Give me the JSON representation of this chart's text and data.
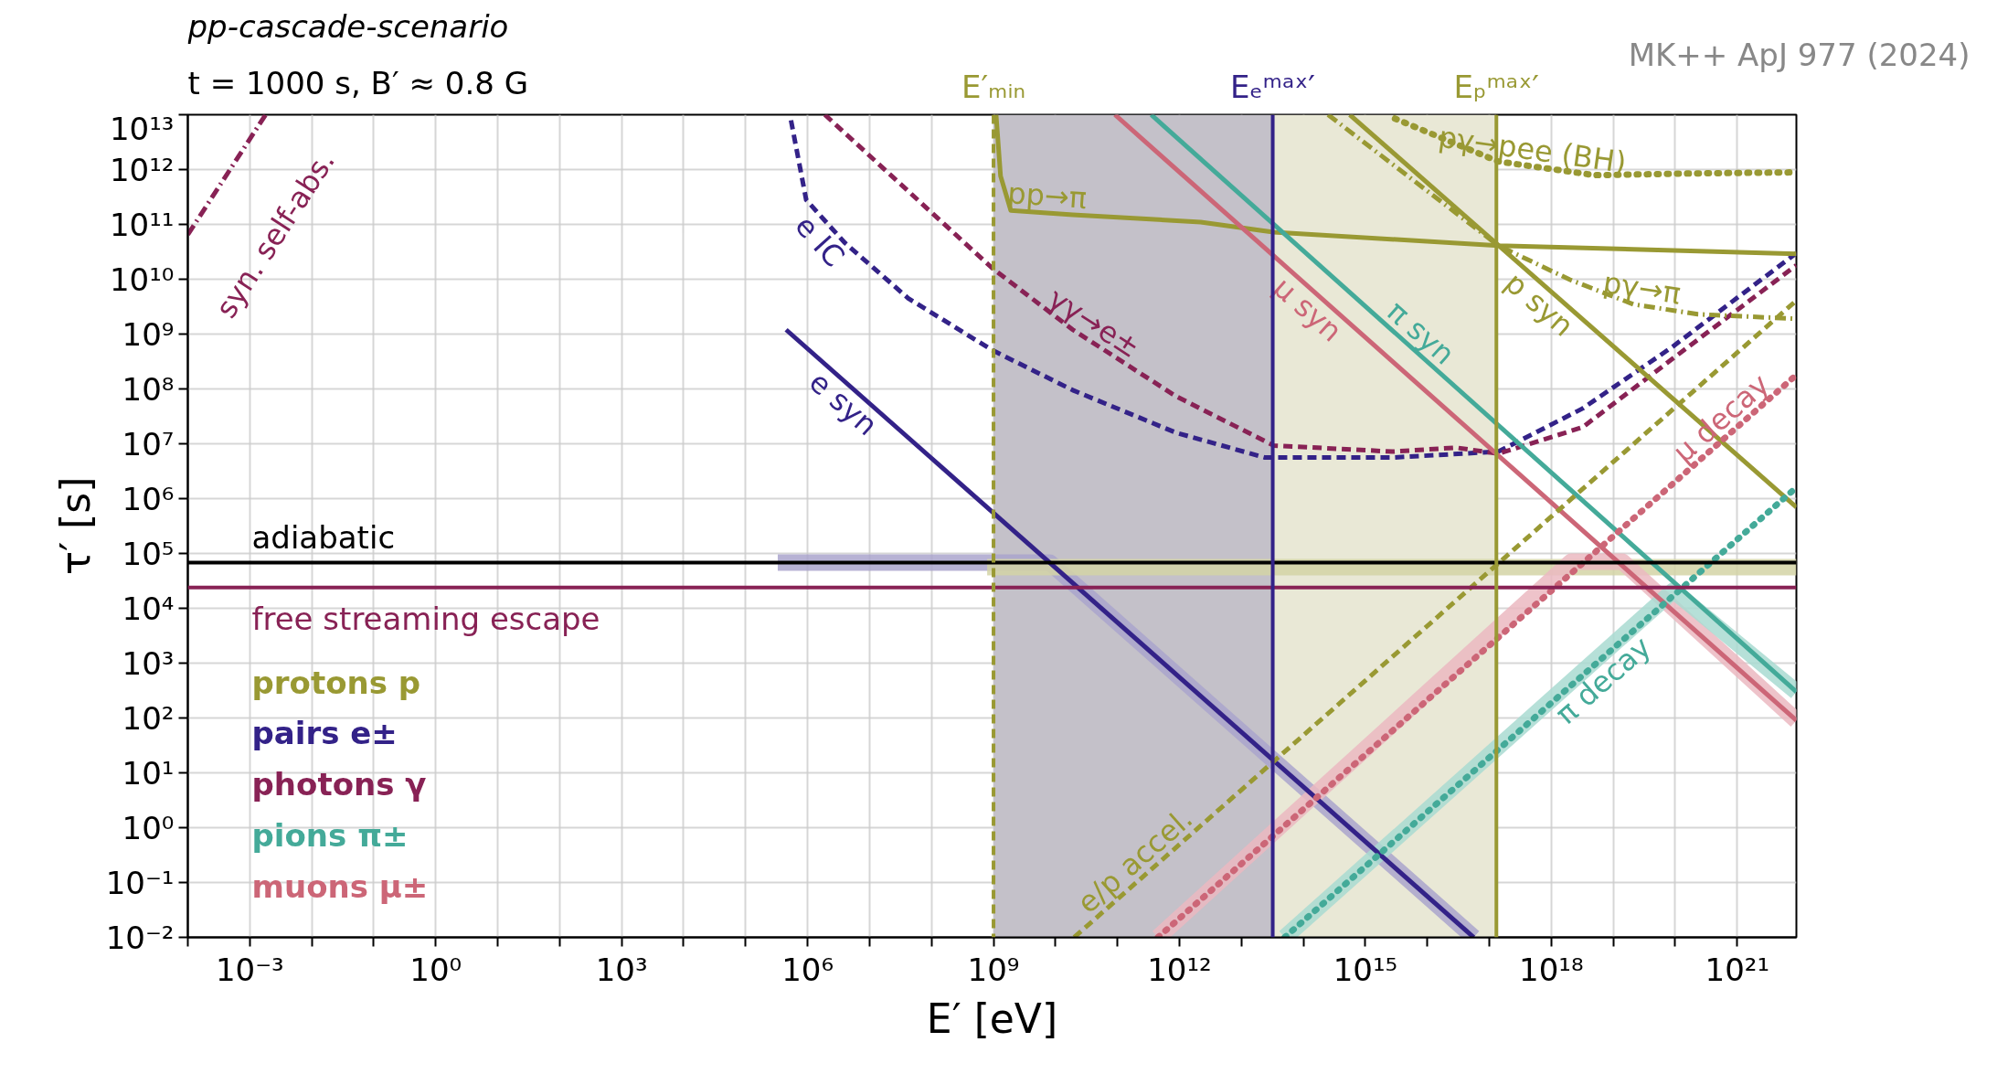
{
  "chart_data": {
    "type": "line",
    "title": "pp-cascade-scenario",
    "subtitle": "t = 1000 s, B′ ≈ 0.8 G",
    "xlabel": "E′ [eV]",
    "ylabel": "τ′ [s]",
    "log": "xy",
    "grid": true,
    "xlim": [
      0.0001,
      9e+21
    ],
    "ylim": [
      0.01,
      10000000000000.0
    ],
    "xticks": [
      {
        "value": 0.0001,
        "label": null
      },
      {
        "value": 0.001,
        "label": "10⁻³"
      },
      {
        "value": 0.01,
        "label": null
      },
      {
        "value": 0.1,
        "label": null
      },
      {
        "value": 1,
        "label": "10⁰"
      },
      {
        "value": 10,
        "label": null
      },
      {
        "value": 100,
        "label": null
      },
      {
        "value": 1000,
        "label": "10³"
      },
      {
        "value": 10000.0,
        "label": null
      },
      {
        "value": 100000.0,
        "label": null
      },
      {
        "value": 1000000.0,
        "label": "10⁶"
      },
      {
        "value": 10000000.0,
        "label": null
      },
      {
        "value": 100000000.0,
        "label": null
      },
      {
        "value": 1000000000.0,
        "label": "10⁹"
      },
      {
        "value": 10000000000.0,
        "label": null
      },
      {
        "value": 100000000000.0,
        "label": null
      },
      {
        "value": 1000000000000.0,
        "label": "10¹²"
      },
      {
        "value": 10000000000000.0,
        "label": null
      },
      {
        "value": 100000000000000.0,
        "label": null
      },
      {
        "value": 1000000000000000.0,
        "label": "10¹⁵"
      },
      {
        "value": 1e+16,
        "label": null
      },
      {
        "value": 1e+17,
        "label": null
      },
      {
        "value": 1e+18,
        "label": "10¹⁸"
      },
      {
        "value": 1e+19,
        "label": null
      },
      {
        "value": 1e+20,
        "label": null
      },
      {
        "value": 1e+21,
        "label": "10²¹"
      }
    ],
    "yticks": [
      {
        "value": 0.01,
        "label": "10⁻²"
      },
      {
        "value": 0.1,
        "label": "10⁻¹"
      },
      {
        "value": 1,
        "label": "10⁰"
      },
      {
        "value": 10,
        "label": "10¹"
      },
      {
        "value": 100,
        "label": "10²"
      },
      {
        "value": 1000,
        "label": "10³"
      },
      {
        "value": 10000.0,
        "label": "10⁴"
      },
      {
        "value": 100000.0,
        "label": "10⁵"
      },
      {
        "value": 1000000.0,
        "label": "10⁶"
      },
      {
        "value": 10000000.0,
        "label": "10⁷"
      },
      {
        "value": 100000000.0,
        "label": "10⁸"
      },
      {
        "value": 1000000000.0,
        "label": "10⁹"
      },
      {
        "value": 10000000000.0,
        "label": "10¹⁰"
      },
      {
        "value": 100000000000.0,
        "label": "10¹¹"
      },
      {
        "value": 1000000000000.0,
        "label": "10¹²"
      },
      {
        "value": 10000000000000.0,
        "label": "10¹³"
      }
    ],
    "bands": [
      {
        "axis": "x",
        "from": 1000000000.0,
        "to": 32000000000000.0,
        "color": "#c4c1c9"
      },
      {
        "axis": "x",
        "from": 32000000000000.0,
        "to": 1.3e+17,
        "color": "#e9e8d6"
      }
    ],
    "ref_lines": [
      {
        "axis": "y",
        "value": 68000.0,
        "label": "adiabatic",
        "color": "#000000",
        "line_style": "solid"
      },
      {
        "axis": "y",
        "value": 24000.0,
        "label": "free streaming escape",
        "color": "#882255",
        "line_style": "solid"
      },
      {
        "axis": "x",
        "value": 1000000000.0,
        "label": "E′ₘᵢₙ",
        "color": "#999933",
        "line_style": "dashed"
      },
      {
        "axis": "x",
        "value": 32000000000000.0,
        "label": "Eₑᵐᵃˣ′",
        "color": "#332288",
        "line_style": "solid"
      },
      {
        "axis": "x",
        "value": 1.3e+17,
        "label": "Eₚᵐᵃˣ′",
        "color": "#999933",
        "line_style": "solid"
      }
    ],
    "series": [
      {
        "color": "#aaa5cc",
        "line_style": "solid",
        "x": [
          330000.0,
          8100000000.0,
          5.6e+16
        ],
        "values": [
          68000.0,
          68000.0,
          0.01
        ]
      },
      {
        "color": "#d4d4a6",
        "line_style": "solid",
        "x": [
          790000000.0,
          9e+21
        ],
        "values": [
          56000.0,
          56000.0
        ]
      },
      {
        "color": "#ebb9c1",
        "line_style": "solid",
        "x": [
          450000000000.0,
          2.1e+18,
          1.4e+19,
          9e+21
        ],
        "values": [
          0.01,
          71000.0,
          71000.0,
          90.0
        ]
      },
      {
        "color": "#a9dbd1",
        "line_style": "solid",
        "x": [
          50000000000000.0,
          9.3e+19,
          9e+21
        ],
        "values": [
          0.01,
          21000.0,
          300.0
        ]
      },
      {
        "name": "e syn",
        "color": "#332288",
        "line_style": "solid",
        "x": [
          450000.0,
          5.6e+16
        ],
        "values": [
          1200000000.0,
          0.01
        ]
      },
      {
        "name": "e IC",
        "color": "#332288",
        "line_style": "dashed",
        "x": [
          540000.0,
          950000.0,
          4000000.0,
          42000000.0,
          950000000.0,
          19000000000.0,
          870000000000.0,
          24000000000000.0,
          2700000000000000.0,
          1.4e+17,
          3.2e+18,
          8.9e+19,
          9e+21
        ],
        "values": [
          7900000000000.0,
          280000000000.0,
          46000000000.0,
          4500000000.0,
          510000000.0,
          95000000.0,
          16000000.0,
          5600000.0,
          5600000.0,
          7200000.0,
          44000000.0,
          580000000.0,
          30000000000.0
        ]
      },
      {
        "name": "γγ→e±",
        "color": "#882255",
        "line_style": "dashed",
        "x": [
          1900000.0,
          950000000.0,
          19000000000.0,
          870000000000.0,
          33000000000000.0,
          2700000000000000.0,
          2.9e+16,
          1.4e+17,
          3.2e+18,
          8.9e+19,
          9e+21
        ],
        "values": [
          10000000000000.0,
          16000000000.0,
          1200000000.0,
          74000000.0,
          9300000.0,
          7200000.0,
          8500000.0,
          6600000.0,
          20000000.0,
          350000000.0,
          18000000000.0
        ]
      },
      {
        "name": "syn. self-abs.",
        "color": "#882255",
        "line_style": "dashdot",
        "x": [
          0.0001,
          0.0018
        ],
        "values": [
          65000000000.0,
          10000000000000.0
        ]
      },
      {
        "name": "pp→π",
        "color": "#999933",
        "line_style": "solid",
        "x": [
          1100000000.0,
          1300000000.0,
          1900000000.0,
          19000000000.0,
          2200000000000.0,
          33000000000000.0,
          1.4e+17,
          9e+21
        ],
        "values": [
          10000000000000.0,
          760000000000.0,
          180000000000.0,
          150000000000.0,
          110000000000.0,
          72000000000.0,
          41000000000.0,
          29000000000.0
        ]
      },
      {
        "name": "pγ→π",
        "color": "#999933",
        "line_style": "dashdot",
        "x": [
          250000000000000.0,
          1.4e+17,
          2e+18,
          2.1e+19,
          2.3e+20,
          9e+21
        ],
        "values": [
          10000000000000.0,
          41000000000.0,
          9800000000.0,
          3500000000.0,
          2300000000.0,
          1900000000.0
        ]
      },
      {
        "name": "pγ→pee (BH)",
        "color": "#999933",
        "line_style": "dotted",
        "x": [
          3000000000000000.0,
          1.4e+17,
          5e+18,
          2e+20,
          9e+21
        ],
        "values": [
          8500000000000.0,
          1400000000000.0,
          790000000000.0,
          850000000000.0,
          890000000000.0
        ]
      },
      {
        "name": "p syn",
        "color": "#999933",
        "line_style": "solid",
        "x": [
          560000000000000.0,
          9e+21
        ],
        "values": [
          10000000000000.0,
          700000.0
        ]
      },
      {
        "name": "π syn",
        "color": "#44aa99",
        "line_style": "solid",
        "x": [
          350000000000.0,
          9e+21
        ],
        "values": [
          10000000000000.0,
          300.0
        ]
      },
      {
        "name": "μ syn",
        "color": "#cc6677",
        "line_style": "solid",
        "x": [
          91000000000.0,
          9e+21
        ],
        "values": [
          10000000000000.0,
          90.0
        ]
      },
      {
        "name": "μ decay",
        "color": "#cc6677",
        "line_style": "dotted",
        "x": [
          450000000000.0,
          9e+21
        ],
        "values": [
          0.01,
          180000000.0
        ]
      },
      {
        "name": "π decay",
        "color": "#44aa99",
        "line_style": "dotted",
        "x": [
          50000000000000.0,
          9e+21
        ],
        "values": [
          0.01,
          1600000.0
        ]
      },
      {
        "name": "e/p accel.",
        "color": "#999933",
        "line_style": "dashed",
        "x": [
          20000000000.0,
          9e+21
        ],
        "values": [
          0.01,
          4100000000.0
        ]
      }
    ],
    "annotations": [
      "MK++ ApJ 977 (2024)",
      "protons p",
      "pairs e±",
      "photons γ",
      "pions π±",
      "muons μ±"
    ]
  }
}
